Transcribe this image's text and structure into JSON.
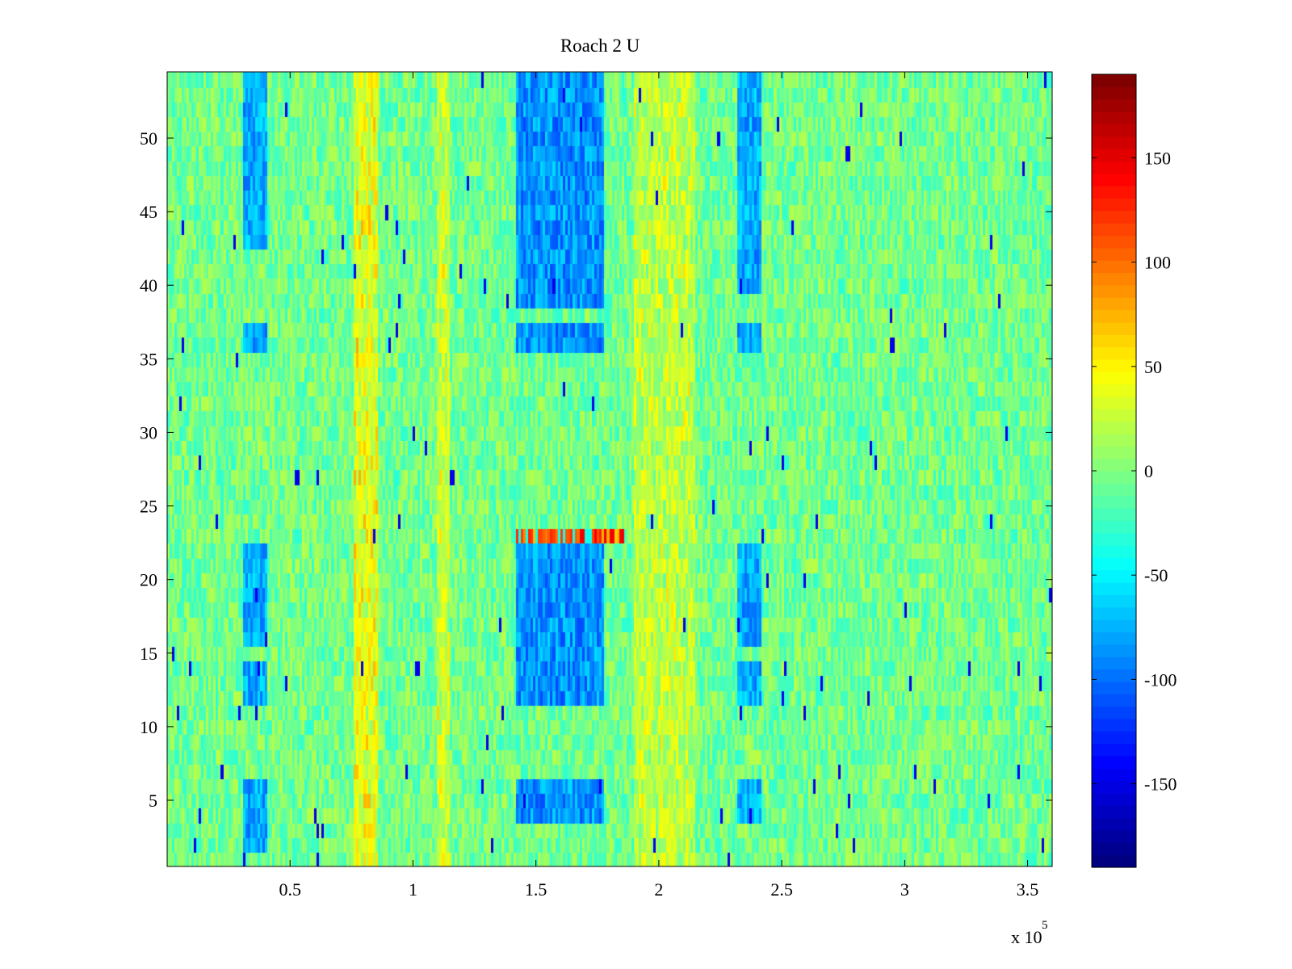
{
  "chart_data": {
    "type": "heatmap",
    "title": "Roach 2 U",
    "xlabel": "",
    "ylabel": "",
    "x_multiplier_label": {
      "base": "x 10",
      "exponent": "5"
    },
    "xlim": [
      0,
      360000
    ],
    "ylim": [
      0.5,
      54.5
    ],
    "x_ticks": [
      50000,
      100000,
      150000,
      200000,
      250000,
      300000,
      350000
    ],
    "x_tick_labels": [
      "0.5",
      "1",
      "1.5",
      "2",
      "2.5",
      "3",
      "3.5"
    ],
    "y_ticks": [
      5,
      10,
      15,
      20,
      25,
      30,
      35,
      40,
      45,
      50
    ],
    "y_tick_labels": [
      "5",
      "10",
      "15",
      "20",
      "25",
      "30",
      "35",
      "40",
      "45",
      "50"
    ],
    "colormap": "jet",
    "clim": [
      -190,
      190
    ],
    "colorbar_ticks": [
      150,
      100,
      50,
      0,
      -50,
      -100,
      -150
    ],
    "colorbar_tick_labels": [
      "150",
      "100",
      "50",
      "0",
      "-50",
      "-100",
      "-150"
    ],
    "rows": 54,
    "row_range": [
      1,
      54
    ],
    "grid": false,
    "colorbar": "right",
    "features": {
      "baseline": -5,
      "warm_columns": [
        {
          "x_range": [
            76000,
            86000
          ],
          "value": 55
        },
        {
          "x_range": [
            110000,
            115000
          ],
          "value": 40
        },
        {
          "x_range": [
            190000,
            215000
          ],
          "value": 35
        }
      ],
      "cold_column_blocks": [
        {
          "x_range": [
            31000,
            41000
          ],
          "y_ranges": [
            [
              47,
              54
            ],
            [
              43,
              46
            ],
            [
              36,
              37
            ],
            [
              16,
              22
            ],
            [
              12,
              14
            ],
            [
              4,
              6
            ],
            [
              2,
              3
            ]
          ],
          "value": -100
        },
        {
          "x_range": [
            142000,
            178000
          ],
          "y_ranges": [
            [
              47,
              54
            ],
            [
              39,
              46
            ],
            [
              36,
              37
            ],
            [
              15,
              22
            ],
            [
              12,
              14
            ],
            [
              4,
              6
            ]
          ],
          "value": -110
        },
        {
          "x_range": [
            232000,
            242000
          ],
          "y_ranges": [
            [
              47,
              54
            ],
            [
              40,
              46
            ],
            [
              36,
              37
            ],
            [
              16,
              22
            ],
            [
              12,
              14
            ],
            [
              4,
              6
            ]
          ],
          "value": -100
        }
      ],
      "hot_row_segment": {
        "row": 23,
        "x_range": [
          142000,
          186000
        ],
        "value": 150
      }
    }
  }
}
